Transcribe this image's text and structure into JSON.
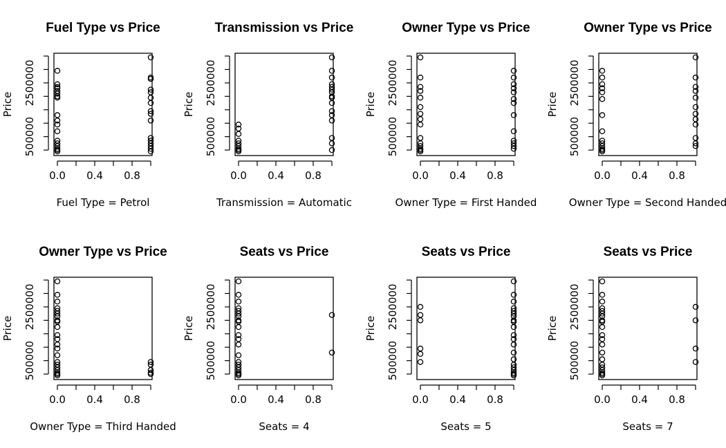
{
  "chart_data": [
    {
      "type": "scatter",
      "title": "Fuel Type vs Price",
      "xlabel": "Fuel Type = Petrol",
      "ylabel": "Price",
      "xlim": [
        0,
        1
      ],
      "ylim": [
        0,
        3500000
      ],
      "xticks": [
        "0.0",
        "0.4",
        "0.8"
      ],
      "yticks": [
        "500000",
        "2500000"
      ],
      "points": [
        {
          "x": 0,
          "y": 2950000
        },
        {
          "x": 0,
          "y": 2450000
        },
        {
          "x": 0,
          "y": 2350000
        },
        {
          "x": 0,
          "y": 2300000
        },
        {
          "x": 0,
          "y": 2200000
        },
        {
          "x": 0,
          "y": 2100000
        },
        {
          "x": 0,
          "y": 2000000
        },
        {
          "x": 0,
          "y": 1950000
        },
        {
          "x": 0,
          "y": 1300000
        },
        {
          "x": 0,
          "y": 1100000
        },
        {
          "x": 0,
          "y": 950000
        },
        {
          "x": 0,
          "y": 700000
        },
        {
          "x": 0,
          "y": 350000
        },
        {
          "x": 0,
          "y": 250000
        },
        {
          "x": 0,
          "y": 150000
        },
        {
          "x": 0,
          "y": 50000
        },
        {
          "x": 0,
          "y": 0
        },
        {
          "x": 0,
          "y": -50000
        },
        {
          "x": 1,
          "y": 3450000
        },
        {
          "x": 1,
          "y": 2700000
        },
        {
          "x": 1,
          "y": 2650000
        },
        {
          "x": 1,
          "y": 2250000
        },
        {
          "x": 1,
          "y": 2150000
        },
        {
          "x": 1,
          "y": 1950000
        },
        {
          "x": 1,
          "y": 1750000
        },
        {
          "x": 1,
          "y": 1450000
        },
        {
          "x": 1,
          "y": 1350000
        },
        {
          "x": 1,
          "y": 1100000
        },
        {
          "x": 1,
          "y": 450000
        },
        {
          "x": 1,
          "y": 350000
        },
        {
          "x": 1,
          "y": 250000
        },
        {
          "x": 1,
          "y": 150000
        },
        {
          "x": 1,
          "y": 50000
        },
        {
          "x": 1,
          "y": -50000
        }
      ]
    },
    {
      "type": "scatter",
      "title": "Transmission vs Price",
      "xlabel": "Transmission = Automatic",
      "ylabel": "Price",
      "xlim": [
        0,
        1
      ],
      "ylim": [
        0,
        3500000
      ],
      "xticks": [
        "0.0",
        "0.4",
        "0.8"
      ],
      "yticks": [
        "500000",
        "2500000"
      ],
      "points": [
        {
          "x": 0,
          "y": 950000
        },
        {
          "x": 0,
          "y": 800000
        },
        {
          "x": 0,
          "y": 600000
        },
        {
          "x": 0,
          "y": 350000
        },
        {
          "x": 0,
          "y": 250000
        },
        {
          "x": 0,
          "y": 150000
        },
        {
          "x": 0,
          "y": 50000
        },
        {
          "x": 0,
          "y": 0
        },
        {
          "x": 0,
          "y": -50000
        },
        {
          "x": 1,
          "y": 3450000
        },
        {
          "x": 1,
          "y": 2950000
        },
        {
          "x": 1,
          "y": 2700000
        },
        {
          "x": 1,
          "y": 2450000
        },
        {
          "x": 1,
          "y": 2350000
        },
        {
          "x": 1,
          "y": 2250000
        },
        {
          "x": 1,
          "y": 2150000
        },
        {
          "x": 1,
          "y": 2000000
        },
        {
          "x": 1,
          "y": 1950000
        },
        {
          "x": 1,
          "y": 1750000
        },
        {
          "x": 1,
          "y": 1450000
        },
        {
          "x": 1,
          "y": 1300000
        },
        {
          "x": 1,
          "y": 1100000
        },
        {
          "x": 1,
          "y": 450000
        },
        {
          "x": 1,
          "y": 250000
        },
        {
          "x": 1,
          "y": 0
        }
      ]
    },
    {
      "type": "scatter",
      "title": "Owner Type vs Price",
      "xlabel": "Owner Type = First Handed",
      "ylabel": "Price",
      "xlim": [
        0,
        1
      ],
      "ylim": [
        0,
        3500000
      ],
      "xticks": [
        "0.0",
        "0.4",
        "0.8"
      ],
      "yticks": [
        "500000",
        "2500000"
      ],
      "points": [
        {
          "x": 0,
          "y": 3450000
        },
        {
          "x": 0,
          "y": 2700000
        },
        {
          "x": 0,
          "y": 2350000
        },
        {
          "x": 0,
          "y": 2200000
        },
        {
          "x": 0,
          "y": 1950000
        },
        {
          "x": 0,
          "y": 1600000
        },
        {
          "x": 0,
          "y": 1350000
        },
        {
          "x": 0,
          "y": 1150000
        },
        {
          "x": 0,
          "y": 950000
        },
        {
          "x": 0,
          "y": 450000
        },
        {
          "x": 0,
          "y": 250000
        },
        {
          "x": 0,
          "y": 150000
        },
        {
          "x": 0,
          "y": 50000
        },
        {
          "x": 0,
          "y": 0
        },
        {
          "x": 0,
          "y": -50000
        },
        {
          "x": 1,
          "y": 2950000
        },
        {
          "x": 1,
          "y": 2700000
        },
        {
          "x": 1,
          "y": 2450000
        },
        {
          "x": 1,
          "y": 2300000
        },
        {
          "x": 1,
          "y": 2150000
        },
        {
          "x": 1,
          "y": 1900000
        },
        {
          "x": 1,
          "y": 1750000
        },
        {
          "x": 1,
          "y": 1300000
        },
        {
          "x": 1,
          "y": 700000
        },
        {
          "x": 1,
          "y": 350000
        },
        {
          "x": 1,
          "y": 250000
        },
        {
          "x": 1,
          "y": 150000
        },
        {
          "x": 1,
          "y": 50000
        }
      ]
    },
    {
      "type": "scatter",
      "title": "Owner Type vs Price",
      "xlabel": "Owner Type = Second Handed",
      "ylabel": "Price",
      "xlim": [
        0,
        1
      ],
      "ylim": [
        0,
        3500000
      ],
      "xticks": [
        "0.0",
        "0.4",
        "0.8"
      ],
      "yticks": [
        "500000",
        "2500000"
      ],
      "points": [
        {
          "x": 0,
          "y": 2950000
        },
        {
          "x": 0,
          "y": 2700000
        },
        {
          "x": 0,
          "y": 2450000
        },
        {
          "x": 0,
          "y": 2300000
        },
        {
          "x": 0,
          "y": 2150000
        },
        {
          "x": 0,
          "y": 1900000
        },
        {
          "x": 0,
          "y": 1300000
        },
        {
          "x": 0,
          "y": 700000
        },
        {
          "x": 0,
          "y": 350000
        },
        {
          "x": 0,
          "y": 250000
        },
        {
          "x": 0,
          "y": 150000
        },
        {
          "x": 0,
          "y": 50000
        },
        {
          "x": 0,
          "y": 0
        },
        {
          "x": 0,
          "y": -50000
        },
        {
          "x": 1,
          "y": 3450000
        },
        {
          "x": 1,
          "y": 2700000
        },
        {
          "x": 1,
          "y": 2350000
        },
        {
          "x": 1,
          "y": 2200000
        },
        {
          "x": 1,
          "y": 1950000
        },
        {
          "x": 1,
          "y": 1600000
        },
        {
          "x": 1,
          "y": 1350000
        },
        {
          "x": 1,
          "y": 1150000
        },
        {
          "x": 1,
          "y": 950000
        },
        {
          "x": 1,
          "y": 450000
        },
        {
          "x": 1,
          "y": 250000
        },
        {
          "x": 1,
          "y": 150000
        }
      ]
    },
    {
      "type": "scatter",
      "title": "Owner Type vs Price",
      "xlabel": "Owner Type = Third Handed",
      "ylabel": "Price",
      "xlim": [
        0,
        1
      ],
      "ylim": [
        0,
        3500000
      ],
      "xticks": [
        "0.0",
        "0.4",
        "0.8"
      ],
      "yticks": [
        "500000",
        "2500000"
      ],
      "points": [
        {
          "x": 0,
          "y": 3450000
        },
        {
          "x": 0,
          "y": 2950000
        },
        {
          "x": 0,
          "y": 2700000
        },
        {
          "x": 0,
          "y": 2450000
        },
        {
          "x": 0,
          "y": 2350000
        },
        {
          "x": 0,
          "y": 2250000
        },
        {
          "x": 0,
          "y": 2150000
        },
        {
          "x": 0,
          "y": 2000000
        },
        {
          "x": 0,
          "y": 1950000
        },
        {
          "x": 0,
          "y": 1750000
        },
        {
          "x": 0,
          "y": 1450000
        },
        {
          "x": 0,
          "y": 1300000
        },
        {
          "x": 0,
          "y": 1100000
        },
        {
          "x": 0,
          "y": 950000
        },
        {
          "x": 0,
          "y": 700000
        },
        {
          "x": 0,
          "y": 450000
        },
        {
          "x": 0,
          "y": 350000
        },
        {
          "x": 0,
          "y": 250000
        },
        {
          "x": 0,
          "y": 150000
        },
        {
          "x": 0,
          "y": 50000
        },
        {
          "x": 0,
          "y": 0
        },
        {
          "x": 0,
          "y": -50000
        },
        {
          "x": 1,
          "y": 450000
        },
        {
          "x": 1,
          "y": 350000
        },
        {
          "x": 1,
          "y": 150000
        },
        {
          "x": 1,
          "y": 50000
        },
        {
          "x": 1,
          "y": 0
        }
      ]
    },
    {
      "type": "scatter",
      "title": "Seats vs Price",
      "xlabel": "Seats = 4",
      "ylabel": "Price",
      "xlim": [
        0,
        1
      ],
      "ylim": [
        0,
        3500000
      ],
      "xticks": [
        "0.0",
        "0.4",
        "0.8"
      ],
      "yticks": [
        "500000",
        "2500000"
      ],
      "points": [
        {
          "x": 0,
          "y": 3450000
        },
        {
          "x": 0,
          "y": 2950000
        },
        {
          "x": 0,
          "y": 2700000
        },
        {
          "x": 0,
          "y": 2450000
        },
        {
          "x": 0,
          "y": 2350000
        },
        {
          "x": 0,
          "y": 2250000
        },
        {
          "x": 0,
          "y": 2150000
        },
        {
          "x": 0,
          "y": 2000000
        },
        {
          "x": 0,
          "y": 1950000
        },
        {
          "x": 0,
          "y": 1750000
        },
        {
          "x": 0,
          "y": 1450000
        },
        {
          "x": 0,
          "y": 1300000
        },
        {
          "x": 0,
          "y": 1100000
        },
        {
          "x": 0,
          "y": 700000
        },
        {
          "x": 0,
          "y": 450000
        },
        {
          "x": 0,
          "y": 350000
        },
        {
          "x": 0,
          "y": 250000
        },
        {
          "x": 0,
          "y": 150000
        },
        {
          "x": 0,
          "y": 50000
        },
        {
          "x": 0,
          "y": 0
        },
        {
          "x": 0,
          "y": -50000
        },
        {
          "x": 1,
          "y": 2200000
        },
        {
          "x": 1,
          "y": 800000
        }
      ]
    },
    {
      "type": "scatter",
      "title": "Seats vs Price",
      "xlabel": "Seats = 5",
      "ylabel": "Price",
      "xlim": [
        0,
        1
      ],
      "ylim": [
        0,
        3500000
      ],
      "xticks": [
        "0.0",
        "0.4",
        "0.8"
      ],
      "yticks": [
        "500000",
        "2500000"
      ],
      "points": [
        {
          "x": 0,
          "y": 2500000
        },
        {
          "x": 0,
          "y": 2200000
        },
        {
          "x": 0,
          "y": 2000000
        },
        {
          "x": 0,
          "y": 950000
        },
        {
          "x": 0,
          "y": 750000
        },
        {
          "x": 0,
          "y": 450000
        },
        {
          "x": 1,
          "y": 3450000
        },
        {
          "x": 1,
          "y": 2950000
        },
        {
          "x": 1,
          "y": 2700000
        },
        {
          "x": 1,
          "y": 2450000
        },
        {
          "x": 1,
          "y": 2350000
        },
        {
          "x": 1,
          "y": 2250000
        },
        {
          "x": 1,
          "y": 2150000
        },
        {
          "x": 1,
          "y": 2000000
        },
        {
          "x": 1,
          "y": 1950000
        },
        {
          "x": 1,
          "y": 1750000
        },
        {
          "x": 1,
          "y": 1450000
        },
        {
          "x": 1,
          "y": 1300000
        },
        {
          "x": 1,
          "y": 1100000
        },
        {
          "x": 1,
          "y": 800000
        },
        {
          "x": 1,
          "y": 550000
        },
        {
          "x": 1,
          "y": 350000
        },
        {
          "x": 1,
          "y": 250000
        },
        {
          "x": 1,
          "y": 150000
        },
        {
          "x": 1,
          "y": 50000
        },
        {
          "x": 1,
          "y": 0
        },
        {
          "x": 1,
          "y": -50000
        }
      ]
    },
    {
      "type": "scatter",
      "title": "Seats vs Price",
      "xlabel": "Seats = 7",
      "ylabel": "Price",
      "xlim": [
        0,
        1
      ],
      "ylim": [
        0,
        3500000
      ],
      "xticks": [
        "0.0",
        "0.4",
        "0.8"
      ],
      "yticks": [
        "500000",
        "2500000"
      ],
      "points": [
        {
          "x": 0,
          "y": 3450000
        },
        {
          "x": 0,
          "y": 2950000
        },
        {
          "x": 0,
          "y": 2700000
        },
        {
          "x": 0,
          "y": 2450000
        },
        {
          "x": 0,
          "y": 2350000
        },
        {
          "x": 0,
          "y": 2250000
        },
        {
          "x": 0,
          "y": 2150000
        },
        {
          "x": 0,
          "y": 2000000
        },
        {
          "x": 0,
          "y": 1950000
        },
        {
          "x": 0,
          "y": 1750000
        },
        {
          "x": 0,
          "y": 1450000
        },
        {
          "x": 0,
          "y": 1300000
        },
        {
          "x": 0,
          "y": 1100000
        },
        {
          "x": 0,
          "y": 800000
        },
        {
          "x": 0,
          "y": 550000
        },
        {
          "x": 0,
          "y": 350000
        },
        {
          "x": 0,
          "y": 250000
        },
        {
          "x": 0,
          "y": 150000
        },
        {
          "x": 0,
          "y": 50000
        },
        {
          "x": 0,
          "y": 0
        },
        {
          "x": 0,
          "y": -50000
        },
        {
          "x": 1,
          "y": 2500000
        },
        {
          "x": 1,
          "y": 2000000
        },
        {
          "x": 1,
          "y": 950000
        },
        {
          "x": 1,
          "y": 450000
        }
      ]
    }
  ]
}
